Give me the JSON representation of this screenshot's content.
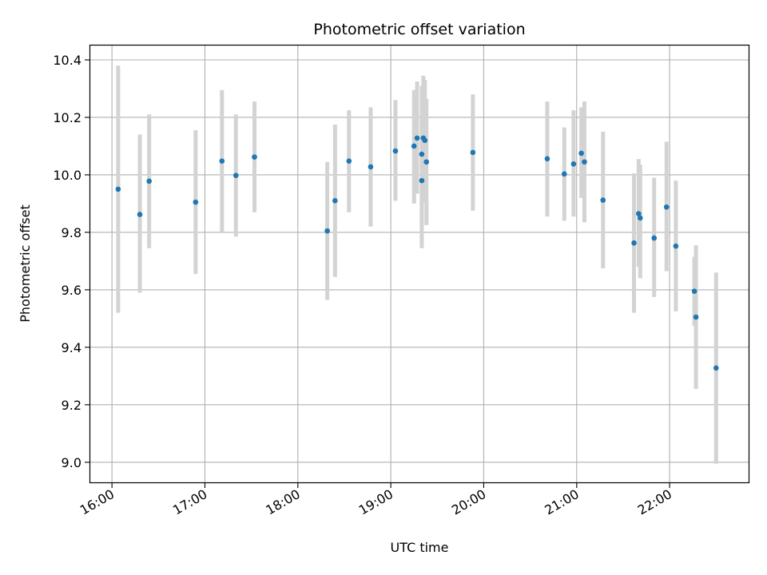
{
  "chart_data": {
    "type": "scatter",
    "title": "Photometric offset variation",
    "xlabel": "UTC time",
    "ylabel": "Photometric offset",
    "x_ticks": [
      "16:00",
      "17:00",
      "18:00",
      "19:00",
      "20:00",
      "21:00",
      "22:00"
    ],
    "y_ticks": [
      9.0,
      9.2,
      9.4,
      9.6,
      9.8,
      10.0,
      10.2,
      10.4
    ],
    "xlim": [
      "15:46",
      "22:51"
    ],
    "ylim": [
      8.93,
      10.45
    ],
    "grid": true,
    "point_color": "#1f77b4",
    "errorbar_color": "#d3d3d3",
    "points": [
      {
        "x": "16:04",
        "y": 9.95,
        "low": 9.52,
        "high": 10.38
      },
      {
        "x": "16:18",
        "y": 9.862,
        "low": 9.59,
        "high": 10.14
      },
      {
        "x": "16:24",
        "y": 9.978,
        "low": 9.745,
        "high": 10.21
      },
      {
        "x": "16:54",
        "y": 9.905,
        "low": 9.655,
        "high": 10.155
      },
      {
        "x": "17:11",
        "y": 10.048,
        "low": 9.8,
        "high": 10.295
      },
      {
        "x": "17:20",
        "y": 9.998,
        "low": 9.785,
        "high": 10.21
      },
      {
        "x": "17:32",
        "y": 10.062,
        "low": 9.87,
        "high": 10.255
      },
      {
        "x": "18:19",
        "y": 9.805,
        "low": 9.565,
        "high": 10.045
      },
      {
        "x": "18:24",
        "y": 9.91,
        "low": 9.645,
        "high": 10.175
      },
      {
        "x": "18:33",
        "y": 10.048,
        "low": 9.87,
        "high": 10.225
      },
      {
        "x": "18:47",
        "y": 10.028,
        "low": 9.82,
        "high": 10.235
      },
      {
        "x": "19:03",
        "y": 10.083,
        "low": 9.91,
        "high": 10.26
      },
      {
        "x": "19:15",
        "y": 10.1,
        "low": 9.9,
        "high": 10.295
      },
      {
        "x": "19:17",
        "y": 10.128,
        "low": 9.935,
        "high": 10.325
      },
      {
        "x": "19:20",
        "y": 9.98,
        "low": 9.745,
        "high": 10.215
      },
      {
        "x": "19:20",
        "y": 10.072,
        "low": 9.83,
        "high": 10.31
      },
      {
        "x": "19:21",
        "y": 10.128,
        "low": 9.915,
        "high": 10.345
      },
      {
        "x": "19:22",
        "y": 10.12,
        "low": 9.905,
        "high": 10.33
      },
      {
        "x": "19:23",
        "y": 10.045,
        "low": 9.825,
        "high": 10.265
      },
      {
        "x": "19:53",
        "y": 10.078,
        "low": 9.875,
        "high": 10.28
      },
      {
        "x": "20:41",
        "y": 10.056,
        "low": 9.855,
        "high": 10.255
      },
      {
        "x": "20:52",
        "y": 10.003,
        "low": 9.84,
        "high": 10.165
      },
      {
        "x": "20:58",
        "y": 10.038,
        "low": 9.855,
        "high": 10.225
      },
      {
        "x": "21:03",
        "y": 10.075,
        "low": 9.92,
        "high": 10.235
      },
      {
        "x": "21:05",
        "y": 10.045,
        "low": 9.835,
        "high": 10.255
      },
      {
        "x": "21:17",
        "y": 9.912,
        "low": 9.675,
        "high": 10.15
      },
      {
        "x": "21:37",
        "y": 9.763,
        "low": 9.52,
        "high": 10.005
      },
      {
        "x": "21:40",
        "y": 9.865,
        "low": 9.68,
        "high": 10.055
      },
      {
        "x": "21:41",
        "y": 9.85,
        "low": 9.64,
        "high": 10.035
      },
      {
        "x": "21:50",
        "y": 9.78,
        "low": 9.575,
        "high": 9.99
      },
      {
        "x": "21:58",
        "y": 9.888,
        "low": 9.665,
        "high": 10.115
      },
      {
        "x": "22:04",
        "y": 9.752,
        "low": 9.525,
        "high": 9.98
      },
      {
        "x": "22:16",
        "y": 9.595,
        "low": 9.475,
        "high": 9.715
      },
      {
        "x": "22:17",
        "y": 9.505,
        "low": 9.255,
        "high": 9.755
      },
      {
        "x": "22:30",
        "y": 9.328,
        "low": 8.995,
        "high": 9.66
      }
    ]
  }
}
